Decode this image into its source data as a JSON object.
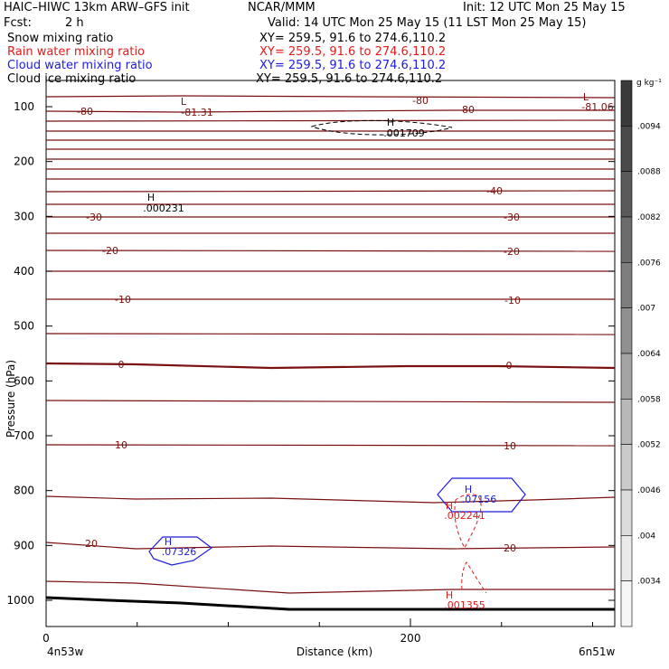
{
  "header": {
    "title_left": "HAIC–HIWC 13km ARW–GFS init",
    "org": "NCAR/MMM",
    "init": "Init: 12 UTC Mon 25 May 15",
    "fcst_label": "Fcst:",
    "fcst_value": "2 h",
    "valid": "Valid: 14 UTC Mon 25 May 15 (11 LST Mon 25 May 15)",
    "fields": [
      {
        "name": "Snow mixing ratio",
        "xy": "XY= 259.5, 91.6 to 274.6,110.2",
        "color": "#000000"
      },
      {
        "name": "Rain water mixing ratio",
        "xy": "XY= 259.5, 91.6 to 274.6,110.2",
        "color": "#e21b1b"
      },
      {
        "name": "Cloud water mixing ratio",
        "xy": "XY= 259.5, 91.6 to 274.6,110.2",
        "color": "#1c1ce0"
      },
      {
        "name": "Cloud ice mixing ratio",
        "xy": "XY= 259.5, 91.6 to 274.6,110.2",
        "color": "#000000"
      }
    ]
  },
  "chart_data": {
    "type": "contour cross-section",
    "xlabel": "Distance (km)",
    "ylabel": "Pressure (hPa)",
    "x_ticks": [
      "0",
      "200"
    ],
    "x_end_labels": {
      "left": "4n53w",
      "right": "6n51w"
    },
    "y_ticks": [
      100,
      200,
      300,
      400,
      500,
      600,
      700,
      800,
      900,
      1000
    ],
    "colorbar": {
      "unit": "g kg⁻¹",
      "labels": [
        ".0094",
        ".0088",
        ".0082",
        ".0076",
        ".007",
        ".0064",
        ".0058",
        ".0052",
        ".0046",
        ".004",
        ".0034"
      ],
      "colors": [
        "#3a3a3a",
        "#4a4a4a",
        "#5a5a5a",
        "#6c6c6c",
        "#7e7e7e",
        "#909090",
        "#a4a4a4",
        "#b8b8b8",
        "#cacaca",
        "#dcdcdc",
        "#eaeaea",
        "#f6f6f6"
      ]
    },
    "temperature_contours": {
      "color": "#7a1010",
      "label_values": [
        "-80",
        "-81.31",
        "-80",
        "-80",
        "-81.06",
        "-40",
        "-30",
        "-30",
        "-20",
        "-20",
        "-10",
        "-10",
        "0",
        "0",
        "10",
        "10",
        "20",
        "20"
      ]
    },
    "extrema": [
      {
        "letter": "L",
        "value": "-81.31",
        "color": "#7a1010"
      },
      {
        "letter": "L",
        "value": "-81.06",
        "color": "#7a1010"
      },
      {
        "letter": "H",
        "value": ".001709",
        "color": "#000000"
      },
      {
        "letter": "H",
        "value": ".000231",
        "color": "#000000"
      },
      {
        "letter": "H",
        "value": ".07156",
        "color": "#1c1ce0"
      },
      {
        "letter": "H",
        "value": ".002241",
        "color": "#e21b1b"
      },
      {
        "letter": "H",
        "value": ".07326",
        "color": "#1c1ce0"
      },
      {
        "letter": "H",
        "value": ".001355",
        "color": "#e21b1b"
      }
    ]
  }
}
